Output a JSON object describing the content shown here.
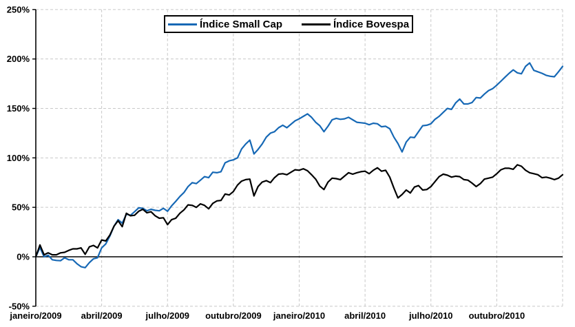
{
  "colors": {
    "small_cap_line": "#1668b5",
    "bovespa_line": "#000000",
    "gridline": "#c8c8c8",
    "axis": "#000000",
    "background": "#ffffff"
  },
  "chart_data": {
    "type": "line",
    "title": "",
    "x_axis": {
      "label": "",
      "tick_labels": [
        "janeiro/2009",
        "abril/2009",
        "julho/2009",
        "outubro/2009",
        "janeiro/2010",
        "abril/2010",
        "julho/2010",
        "outubro/2010"
      ],
      "tick_interval": "3 months",
      "range": [
        "janeiro/2009",
        "dezembro/2010"
      ],
      "gridlines": "dashed"
    },
    "y_axis": {
      "label": "",
      "unit": "%",
      "min": -50,
      "max": 250,
      "tick_values": [
        250,
        200,
        150,
        100,
        50,
        0,
        -50
      ],
      "tick_labels": [
        "250%",
        "200%",
        "150%",
        "100%",
        "50%",
        "0%",
        "-50%"
      ],
      "gridlines": "dashed",
      "zero_line": "solid"
    },
    "legend": {
      "position": "top-center",
      "border": true
    },
    "points_evenly_spaced_over_range": true,
    "series": [
      {
        "name": "Índice Small Cap",
        "color": "#1668b5",
        "values": [
          0,
          9.5,
          0,
          1.5,
          -3,
          -3.7,
          -4,
          -1,
          -3,
          -3,
          -7,
          -10,
          -11,
          -6,
          -2,
          -1,
          9,
          13,
          21,
          31,
          37.5,
          34,
          43,
          42,
          45.5,
          49.5,
          49,
          46.5,
          48,
          47,
          46.5,
          49,
          46,
          51.5,
          56,
          61,
          65,
          71,
          75,
          74,
          77.5,
          81,
          80,
          85.5,
          85,
          86,
          95,
          97,
          98,
          100,
          109,
          114,
          118,
          104,
          108.5,
          114,
          121,
          125,
          126.5,
          130.5,
          133,
          130.5,
          134,
          137.5,
          139.5,
          142,
          144.5,
          141,
          136,
          132.5,
          126.5,
          132,
          138.5,
          140,
          139,
          139.5,
          141,
          138.5,
          136,
          135.5,
          135,
          133.5,
          135,
          134.5,
          131.5,
          132,
          129.5,
          121,
          114.5,
          106,
          116,
          121,
          120.5,
          126.5,
          132.5,
          133,
          134.5,
          139,
          142,
          146,
          150,
          149,
          155.5,
          159.5,
          154.5,
          154.5,
          156,
          161,
          160.5,
          164.5,
          168,
          170,
          173.5,
          177.5,
          181.5,
          185.5,
          189,
          186,
          185,
          192.5,
          196,
          188.5,
          187,
          185.5,
          183.5,
          182.5,
          182,
          187,
          192.5
        ]
      },
      {
        "name": "Índice Bovespa",
        "color": "#000000",
        "values": [
          0,
          12,
          2,
          4,
          2,
          2,
          4,
          4.5,
          6.5,
          8,
          8,
          9,
          2.5,
          10,
          11.5,
          9,
          17,
          16,
          22,
          31,
          36.5,
          30.5,
          44,
          41.5,
          42,
          46,
          48,
          44.5,
          45.5,
          41.5,
          39,
          39.5,
          32.5,
          37.5,
          39,
          44,
          47.5,
          52.5,
          52,
          50,
          53.5,
          52,
          48.5,
          54,
          56.5,
          57,
          63.5,
          62.5,
          66,
          72.5,
          76.5,
          78,
          78.5,
          61.5,
          71,
          75.5,
          77,
          75,
          80,
          83.5,
          84,
          83,
          85.5,
          88,
          87.5,
          89,
          87,
          83,
          78.5,
          71.5,
          68,
          75.5,
          79.5,
          79,
          78,
          81.5,
          85,
          83.5,
          85,
          86,
          86.5,
          84,
          87.5,
          90,
          86.5,
          87.5,
          80.5,
          69.5,
          59.5,
          63,
          67.5,
          64.5,
          70.5,
          72,
          67.5,
          68,
          71,
          76,
          81,
          83.5,
          82.5,
          80.5,
          81.5,
          81,
          78,
          77.5,
          74.5,
          71,
          74,
          78.5,
          79.5,
          80.5,
          84,
          88,
          89.5,
          89.5,
          88.5,
          93,
          91.5,
          87.5,
          85,
          84,
          83,
          80,
          80.5,
          79.5,
          78,
          79.5,
          83
        ]
      }
    ]
  }
}
